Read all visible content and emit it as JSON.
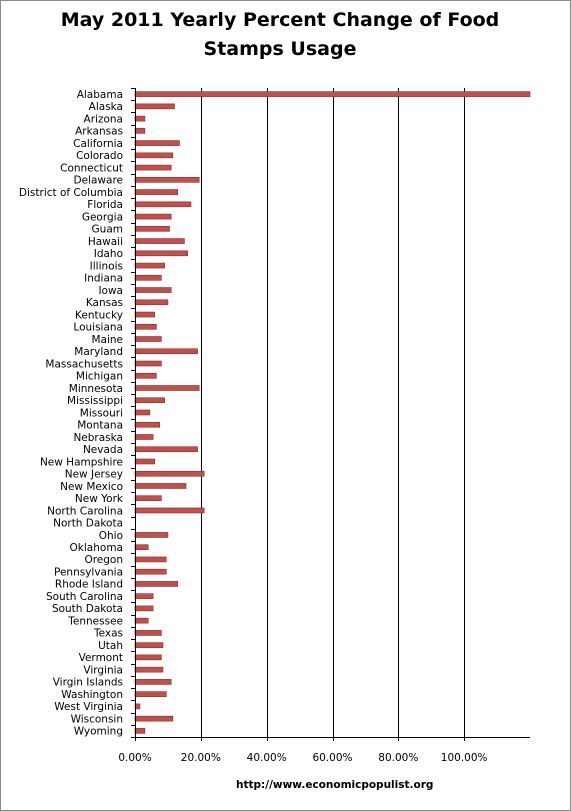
{
  "chart_data": {
    "type": "bar",
    "orientation": "horizontal",
    "title": "May 2011 Yearly Percent Change of Food Stamps Usage",
    "xlabel": "",
    "ylabel": "",
    "xlim": [
      0,
      1.2
    ],
    "x_tick_values": [
      0,
      0.2,
      0.4,
      0.6,
      0.8,
      1.0
    ],
    "x_tick_labels": [
      "0.00%",
      "20.00%",
      "40.00%",
      "60.00%",
      "80.00%",
      "100.00%"
    ],
    "grid": true,
    "bar_color": "#c0504d",
    "categories": [
      "Alabama",
      "Alaska",
      "Arizona",
      "Arkansas",
      "California",
      "Colorado",
      "Connecticut",
      "Delaware",
      "District of Columbia",
      "Florida",
      "Georgia",
      "Guam",
      "Hawaii",
      "Idaho",
      "Illinois",
      "Indiana",
      "Iowa",
      "Kansas",
      "Kentucky",
      "Louisiana",
      "Maine",
      "Maryland",
      "Massachusetts",
      "Michigan",
      "Minnesota",
      "Mississippi",
      "Missouri",
      "Montana",
      "Nebraska",
      "Nevada",
      "New Hampshire",
      "New Jersey",
      "New Mexico",
      "New York",
      "North Carolina",
      "North Dakota",
      "Ohio",
      "Oklahoma",
      "Oregon",
      "Pennsylvania",
      "Rhode Island",
      "South Carolina",
      "South Dakota",
      "Tennessee",
      "Texas",
      "Utah",
      "Vermont",
      "Virginia",
      "Virgin Islands",
      "Washington",
      "West Virginia",
      "Wisconsin",
      "Wyoming"
    ],
    "values": [
      1.21,
      0.12,
      0.03,
      0.03,
      0.135,
      0.115,
      0.11,
      0.195,
      0.13,
      0.17,
      0.11,
      0.105,
      0.15,
      0.16,
      0.09,
      0.08,
      0.11,
      0.1,
      0.06,
      0.065,
      0.08,
      0.19,
      0.08,
      0.065,
      0.195,
      0.09,
      0.045,
      0.075,
      0.055,
      0.19,
      0.06,
      0.21,
      0.155,
      0.08,
      0.21,
      0.0,
      0.1,
      0.04,
      0.095,
      0.095,
      0.13,
      0.055,
      0.055,
      0.04,
      0.08,
      0.085,
      0.08,
      0.085,
      0.11,
      0.095,
      0.015,
      0.115,
      0.03
    ]
  },
  "footer": {
    "source": "http://www.economicpopulist.org"
  }
}
